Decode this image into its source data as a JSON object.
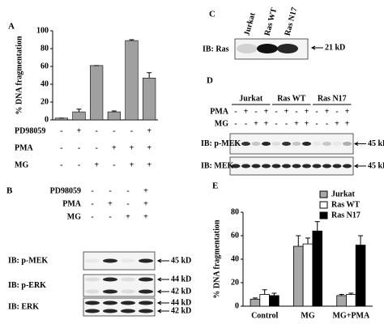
{
  "chart_data": [
    {
      "type": "bar",
      "panel": "A",
      "ylabel": "% DNA fragmentation",
      "ylim": [
        0,
        100
      ],
      "yticks": [
        0,
        20,
        40,
        60,
        80,
        100
      ],
      "color": "#a0a0a0",
      "values": [
        2,
        9,
        61,
        9,
        89,
        47
      ],
      "errors": [
        0,
        3,
        0,
        1,
        1,
        6
      ],
      "treatments": [
        {
          "name": "PD98059",
          "signs": [
            "-",
            "+",
            "-",
            "-",
            "-",
            "+"
          ]
        },
        {
          "name": "PMA",
          "signs": [
            "-",
            "-",
            "-",
            "+",
            "+",
            "+"
          ]
        },
        {
          "name": "MG",
          "signs": [
            "-",
            "-",
            "+",
            "-",
            "+",
            "+"
          ]
        }
      ]
    },
    {
      "type": "bar",
      "panel": "E",
      "ylabel": "% DNA fragmentation",
      "ylim": [
        0,
        80
      ],
      "yticks": [
        0,
        20,
        40,
        60,
        80
      ],
      "legend": "top-right",
      "categories": [
        "Control",
        "MG",
        "MG+PMA"
      ],
      "series": [
        {
          "name": "Jurkat",
          "color": "#a8a8a8",
          "values": [
            6,
            51,
            9
          ],
          "errors": [
            1,
            9,
            1
          ]
        },
        {
          "name": "Ras WT",
          "color": "#ffffff",
          "values": [
            10,
            53,
            10
          ],
          "errors": [
            4,
            5,
            1
          ]
        },
        {
          "name": "Ras N17",
          "color": "#000000",
          "values": [
            9,
            64,
            52
          ],
          "errors": [
            2,
            8,
            8
          ]
        }
      ]
    }
  ],
  "blot_b": {
    "panel": "B",
    "treatments": [
      {
        "name": "PD98059",
        "signs": [
          "-",
          "-",
          "-",
          "+"
        ]
      },
      {
        "name": "PMA",
        "signs": [
          "-",
          "+",
          "-",
          "+"
        ]
      },
      {
        "name": "MG",
        "signs": [
          "-",
          "-",
          "+",
          "+"
        ]
      }
    ],
    "rows": [
      {
        "label": "IB: p-MEK",
        "markers": [
          "45 kD"
        ]
      },
      {
        "label": "IB: p-ERK",
        "markers": [
          "44 kD",
          "42 kD"
        ]
      },
      {
        "label": "IB: ERK",
        "markers": [
          "44 kD",
          "42 kD"
        ]
      }
    ]
  },
  "blot_c": {
    "panel": "C",
    "lanes": [
      "Jurkat",
      "Ras WT",
      "Ras N17"
    ],
    "rows": [
      {
        "label": "IB: Ras",
        "markers": [
          "21 kD"
        ]
      }
    ]
  },
  "blot_d": {
    "panel": "D",
    "groups": [
      "Jurkat",
      "Ras WT",
      "Ras N17"
    ],
    "treatments": [
      {
        "name": "PMA",
        "signs": [
          "-",
          "+",
          "-",
          "+",
          "-",
          "+",
          "-",
          "+",
          "-",
          "+",
          "-",
          "+"
        ]
      },
      {
        "name": "MG",
        "signs": [
          "-",
          "-",
          "+",
          "+",
          "-",
          "-",
          "+",
          "+",
          "-",
          "-",
          "+",
          "+"
        ]
      }
    ],
    "rows": [
      {
        "label": "IB: p-MEK",
        "markers": [
          "45 kD"
        ]
      },
      {
        "label": "IB: MEK",
        "markers": [
          "45 kD"
        ]
      }
    ]
  }
}
